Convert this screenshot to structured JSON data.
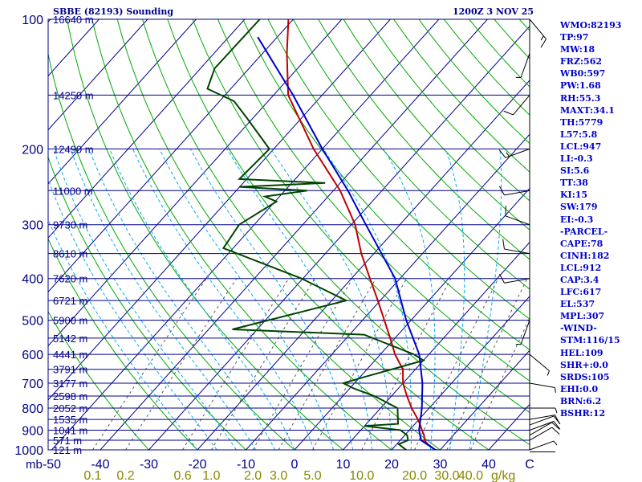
{
  "header": {
    "station": "SBBE (82193) Sounding",
    "time": "1200Z  3 NOV 25"
  },
  "indices": [
    "WMO:82193",
    "TP:97",
    "MW:18",
    "FRZ:562",
    "WB0:597",
    "PW:1.68",
    "RH:55.3",
    "MAXT:34.1",
    "TH:5779",
    "L57:5.8",
    "LCL:947",
    "LI:-0.3",
    "SI:5.6",
    "TT:38",
    "KI:15",
    "SW:179",
    "EI:-0.3",
    "-PARCEL-",
    "CAPE:78",
    "CINH:182",
    "LCL:912",
    "CAP:3.4",
    "LFC:617",
    "EL:537",
    "MPL:307",
    "-WIND-",
    "STM:116/15",
    "HEL:109",
    "SHR+:0.0",
    "SRDS:105",
    "EHI:0.0",
    "BRN:6.2",
    "BSHR:12"
  ],
  "colors": {
    "axis": "#00008b",
    "isobar": "#00008b",
    "isotherm": "#00008b",
    "dry_adiabat": "#00aa00",
    "moist_adiabat": "#00aaff",
    "mixing_ratio": "#555555",
    "temperature": "#c00000",
    "dewpoint": "#004400",
    "parcel": "#0000cc",
    "wind_barb": "#000000",
    "mixing_label": "#888800"
  },
  "chart_data": {
    "type": "skew-t log-p sounding",
    "pressure_axis": {
      "unit_label": "mb",
      "ticks": [
        100,
        200,
        300,
        400,
        500,
        600,
        700,
        800,
        900,
        1000
      ],
      "range": [
        100,
        1000
      ],
      "scale": "log"
    },
    "temperature_axis": {
      "ticks": [
        "-50",
        "-40",
        "-30",
        "-20",
        "-10",
        "0",
        "10",
        "20",
        "30",
        "40",
        "C"
      ],
      "values": [
        -50,
        -40,
        -30,
        -20,
        -10,
        0,
        10,
        20,
        30,
        40
      ],
      "range": [
        -50,
        50
      ],
      "skewed": true
    },
    "mixing_ratio_axis": {
      "unit_label": "g/kg",
      "values": [
        0.1,
        0.2,
        0.6,
        1.0,
        2.0,
        3.0,
        5.0,
        10.0,
        20.0,
        30.0,
        40.0
      ],
      "labels": [
        "0.1",
        "0.2",
        "0.6",
        "1.0",
        "2.0",
        "3.0",
        "5.0",
        "10.0",
        "20.0",
        "30.0",
        "40.0"
      ]
    },
    "height_labels": [
      {
        "p": 100,
        "label": "16640 m"
      },
      {
        "p": 150,
        "label": "14250 m"
      },
      {
        "p": 200,
        "label": "12490 m"
      },
      {
        "p": 250,
        "label": "11000 m"
      },
      {
        "p": 300,
        "label": "9730 m"
      },
      {
        "p": 350,
        "label": "8610 m"
      },
      {
        "p": 400,
        "label": "7620 m"
      },
      {
        "p": 450,
        "label": "6721 m"
      },
      {
        "p": 500,
        "label": "5900 m"
      },
      {
        "p": 550,
        "label": "5142 m"
      },
      {
        "p": 600,
        "label": "4441 m"
      },
      {
        "p": 650,
        "label": "3791 m"
      },
      {
        "p": 700,
        "label": "3177 m"
      },
      {
        "p": 750,
        "label": "2598 m"
      },
      {
        "p": 800,
        "label": "2052 m"
      },
      {
        "p": 850,
        "label": "1535 m"
      },
      {
        "p": 900,
        "label": "1041 m"
      },
      {
        "p": 950,
        "label": "571 m"
      },
      {
        "p": 1000,
        "label": "121 m"
      }
    ],
    "temperature_profile": [
      {
        "p": 1011,
        "t": 32.1
      },
      {
        "p": 1000,
        "t": 29.0
      },
      {
        "p": 970,
        "t": 26.4
      },
      {
        "p": 950,
        "t": 25.0
      },
      {
        "p": 925,
        "t": 24.0
      },
      {
        "p": 900,
        "t": 22.6
      },
      {
        "p": 870,
        "t": 21.0
      },
      {
        "p": 850,
        "t": 19.8
      },
      {
        "p": 800,
        "t": 16.4
      },
      {
        "p": 750,
        "t": 13.2
      },
      {
        "p": 700,
        "t": 10.0
      },
      {
        "p": 650,
        "t": 7.4
      },
      {
        "p": 600,
        "t": 3.0
      },
      {
        "p": 550,
        "t": -1.0
      },
      {
        "p": 500,
        "t": -5.5
      },
      {
        "p": 450,
        "t": -10.5
      },
      {
        "p": 400,
        "t": -16.2
      },
      {
        "p": 350,
        "t": -22.6
      },
      {
        "p": 300,
        "t": -29.2
      },
      {
        "p": 250,
        "t": -38.6
      },
      {
        "p": 200,
        "t": -51.8
      },
      {
        "p": 150,
        "t": -67.0
      },
      {
        "p": 120,
        "t": -75.0
      },
      {
        "p": 100,
        "t": -81.0
      }
    ],
    "dewpoint_profile": [
      {
        "p": 1011,
        "td": 23.5
      },
      {
        "p": 1000,
        "td": 23.0
      },
      {
        "p": 970,
        "td": 20.4
      },
      {
        "p": 950,
        "td": 21.6
      },
      {
        "p": 925,
        "td": 20.5
      },
      {
        "p": 900,
        "td": 18.2
      },
      {
        "p": 880,
        "td": 10.0
      },
      {
        "p": 870,
        "td": 16.5
      },
      {
        "p": 800,
        "td": 13.5
      },
      {
        "p": 750,
        "td": 6.5
      },
      {
        "p": 720,
        "td": 0.8
      },
      {
        "p": 700,
        "td": -2.3
      },
      {
        "p": 680,
        "td": 0.5
      },
      {
        "p": 620,
        "td": 10.0
      },
      {
        "p": 600,
        "td": 6.9
      },
      {
        "p": 540,
        "td": -7.0
      },
      {
        "p": 525,
        "td": -35.1
      },
      {
        "p": 450,
        "td": -17.0
      },
      {
        "p": 400,
        "td": -30.3
      },
      {
        "p": 340,
        "td": -52.0
      },
      {
        "p": 300,
        "td": -53.1
      },
      {
        "p": 265,
        "td": -49.7
      },
      {
        "p": 258,
        "td": -53.0
      },
      {
        "p": 250,
        "td": -45.4
      },
      {
        "p": 245,
        "td": -60.1
      },
      {
        "p": 240,
        "td": -43.1
      },
      {
        "p": 235,
        "td": -61.5
      },
      {
        "p": 200,
        "td": -60.9
      },
      {
        "p": 170,
        "td": -71.1
      },
      {
        "p": 155,
        "td": -77.0
      },
      {
        "p": 145,
        "td": -84.8
      },
      {
        "p": 130,
        "td": -87.1
      },
      {
        "p": 100,
        "td": -86.9
      }
    ],
    "parcel_profile": [
      {
        "p": 1011,
        "t": 32.1
      },
      {
        "p": 1000,
        "t": 29.0
      },
      {
        "p": 950,
        "t": 24.3
      },
      {
        "p": 900,
        "t": 22.0
      },
      {
        "p": 800,
        "t": 18.5
      },
      {
        "p": 700,
        "t": 14.0
      },
      {
        "p": 600,
        "t": 8.0
      },
      {
        "p": 500,
        "t": -1.0
      },
      {
        "p": 400,
        "t": -11.0
      },
      {
        "p": 300,
        "t": -27.0
      },
      {
        "p": 250,
        "t": -37.0
      },
      {
        "p": 200,
        "t": -50.0
      },
      {
        "p": 150,
        "t": -66.0
      },
      {
        "p": 110,
        "t": -84.0
      }
    ],
    "wind_barbs": [
      {
        "p": 1011,
        "dir": 90,
        "spd": 3
      },
      {
        "p": 1000,
        "dir": 70,
        "spd": 8
      },
      {
        "p": 950,
        "dir": 60,
        "spd": 12
      },
      {
        "p": 925,
        "dir": 60,
        "spd": 10
      },
      {
        "p": 900,
        "dir": 70,
        "spd": 12
      },
      {
        "p": 875,
        "dir": 70,
        "spd": 10
      },
      {
        "p": 850,
        "dir": 80,
        "spd": 10
      },
      {
        "p": 800,
        "dir": 90,
        "spd": 8
      },
      {
        "p": 700,
        "dir": 100,
        "spd": 8
      },
      {
        "p": 600,
        "dir": 130,
        "spd": 5
      },
      {
        "p": 500,
        "dir": 200,
        "spd": 8
      },
      {
        "p": 400,
        "dir": 260,
        "spd": 10
      },
      {
        "p": 350,
        "dir": 280,
        "spd": 12
      },
      {
        "p": 300,
        "dir": 290,
        "spd": 10
      },
      {
        "p": 250,
        "dir": 260,
        "spd": 12
      },
      {
        "p": 200,
        "dir": 250,
        "spd": 15
      },
      {
        "p": 150,
        "dir": 220,
        "spd": 10
      },
      {
        "p": 120,
        "dir": 200,
        "spd": 8
      },
      {
        "p": 100,
        "dir": 140,
        "spd": 15
      }
    ]
  }
}
